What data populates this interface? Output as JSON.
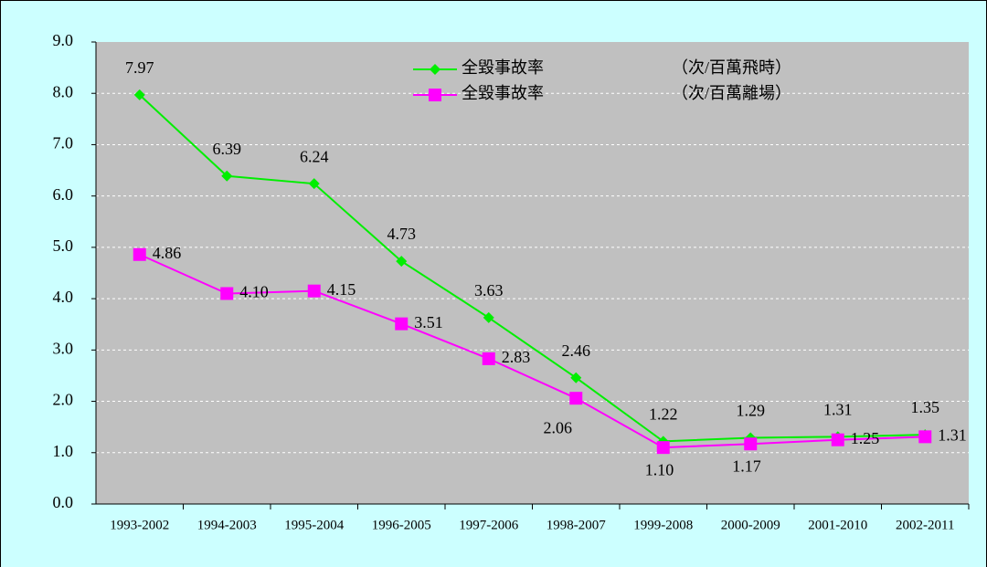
{
  "chart_data": {
    "type": "line",
    "categories": [
      "1993-2002",
      "1994-2003",
      "1995-2004",
      "1996-2005",
      "1997-2006",
      "1998-2007",
      "1999-2008",
      "2000-2009",
      "2001-2010",
      "2002-2011"
    ],
    "series": [
      {
        "name": "全毀事故率",
        "legend_note": "（次/百萬飛時）",
        "color": "#00ee00",
        "marker": "diamond",
        "values": [
          7.97,
          6.39,
          6.24,
          4.73,
          3.63,
          2.46,
          1.22,
          1.29,
          1.31,
          1.35
        ]
      },
      {
        "name": "全毀事故率",
        "legend_note": "（次/百萬離場）",
        "color": "#ff00ff",
        "marker": "square",
        "values": [
          4.86,
          4.1,
          4.15,
          3.51,
          2.83,
          2.06,
          1.1,
          1.17,
          1.25,
          1.31
        ],
        "value_labels": [
          "4.86",
          "4.10",
          "4.15",
          "3.51",
          "2.83",
          "2.06",
          "1.10",
          "1.17",
          "1.25",
          "1.31"
        ]
      }
    ],
    "ylim": [
      0,
      9
    ],
    "yticks": [
      {
        "value": 0,
        "label": "0.0"
      },
      {
        "value": 1,
        "label": "1.0"
      },
      {
        "value": 2,
        "label": "2.0"
      },
      {
        "value": 3,
        "label": "3.0"
      },
      {
        "value": 4,
        "label": "4.0"
      },
      {
        "value": 5,
        "label": "5.0"
      },
      {
        "value": 6,
        "label": "6.0"
      },
      {
        "value": 7,
        "label": "7.0"
      },
      {
        "value": 8,
        "label": "8.0"
      },
      {
        "value": 9,
        "label": "9.0"
      }
    ],
    "grid": true
  }
}
